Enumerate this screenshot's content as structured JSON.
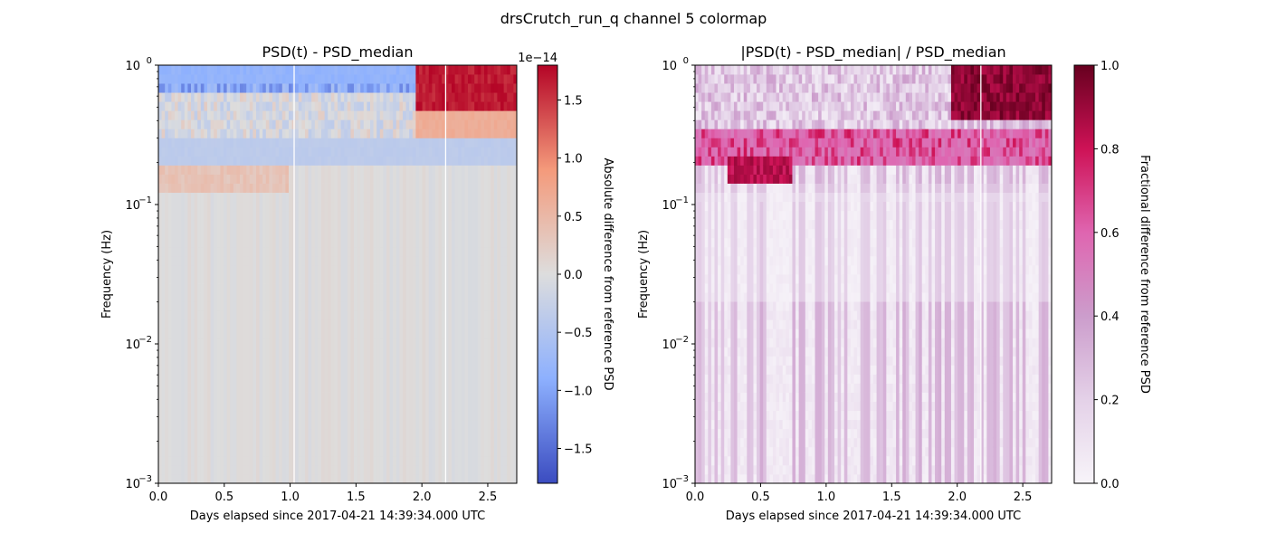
{
  "figure_title": "drsCrutch_run_q channel 5 colormap",
  "chart_data": [
    {
      "type": "heatmap",
      "title": "PSD(t) - PSD_median",
      "xlabel": "Days elapsed since 2017-04-21 14:39:34.000 UTC",
      "ylabel": "Frequency (Hz)",
      "xlim": [
        0.0,
        2.72
      ],
      "ylim": [
        0.001,
        1.0
      ],
      "yscale": "log",
      "xticks": [
        0.0,
        0.5,
        1.0,
        1.5,
        2.0,
        2.5
      ],
      "xtick_labels": [
        "0.0",
        "0.5",
        "1.0",
        "1.5",
        "2.0",
        "2.5"
      ],
      "yticks": [
        0.001,
        0.01,
        0.1,
        1.0
      ],
      "ytick_labels": [
        {
          "base": "10",
          "exp": "−3"
        },
        {
          "base": "10",
          "exp": "−2"
        },
        {
          "base": "10",
          "exp": "−1"
        },
        {
          "base": "10",
          "exp": "0"
        }
      ],
      "colormap": "coolwarm",
      "colorbar": {
        "label": "Absolute difference from reference PSD",
        "multiplier": "1e−14",
        "range": [
          -1.8,
          1.8
        ],
        "ticks": [
          -1.5,
          -1.0,
          -0.5,
          0.0,
          0.5,
          1.0,
          1.5
        ],
        "tick_labels": [
          "−1.5",
          "−1.0",
          "−0.5",
          "0.0",
          "0.5",
          "1.0",
          "1.5"
        ]
      },
      "features": [
        {
          "region": "saturated positive block",
          "x": [
            1.95,
            2.72
          ],
          "freq": [
            0.5,
            1.0
          ],
          "value": 1.8
        },
        {
          "region": "warm band",
          "x": [
            1.95,
            2.72
          ],
          "freq": [
            0.3,
            0.5
          ],
          "value": 0.7
        },
        {
          "region": "cool band",
          "x": [
            0.0,
            1.95
          ],
          "freq": [
            0.7,
            1.0
          ],
          "value": -0.9
        },
        {
          "region": "cool band",
          "x": [
            0.0,
            2.72
          ],
          "freq": [
            0.2,
            0.28
          ],
          "value": -0.4
        }
      ],
      "gaps_x": [
        1.03,
        2.18
      ]
    },
    {
      "type": "heatmap",
      "title": "|PSD(t) - PSD_median| / PSD_median",
      "xlabel": "Days elapsed since 2017-04-21 14:39:34.000 UTC",
      "ylabel": "Frequency (Hz)",
      "xlim": [
        0.0,
        2.72
      ],
      "ylim": [
        0.001,
        1.0
      ],
      "yscale": "log",
      "xticks": [
        0.0,
        0.5,
        1.0,
        1.5,
        2.0,
        2.5
      ],
      "xtick_labels": [
        "0.0",
        "0.5",
        "1.0",
        "1.5",
        "2.0",
        "2.5"
      ],
      "yticks": [
        0.001,
        0.01,
        0.1,
        1.0
      ],
      "ytick_labels": [
        {
          "base": "10",
          "exp": "−3"
        },
        {
          "base": "10",
          "exp": "−2"
        },
        {
          "base": "10",
          "exp": "−1"
        },
        {
          "base": "10",
          "exp": "0"
        }
      ],
      "colormap": "PuRd",
      "colorbar": {
        "label": "Fractional difference from reference PSD",
        "multiplier": "",
        "range": [
          0.0,
          1.0
        ],
        "ticks": [
          0.0,
          0.2,
          0.4,
          0.6,
          0.8,
          1.0
        ],
        "tick_labels": [
          "0.0",
          "0.2",
          "0.4",
          "0.6",
          "0.8",
          "1.0"
        ]
      },
      "features": [
        {
          "region": "saturated block",
          "x": [
            1.95,
            2.72
          ],
          "freq": [
            0.38,
            1.0
          ],
          "value": 1.0
        },
        {
          "region": "strong band",
          "x": [
            0.25,
            0.75
          ],
          "freq": [
            0.14,
            0.22
          ],
          "value": 0.9
        },
        {
          "region": "band",
          "x": [
            0.0,
            2.72
          ],
          "freq": [
            0.2,
            0.35
          ],
          "value": 0.6
        }
      ],
      "gaps_x": [
        2.18
      ]
    }
  ]
}
